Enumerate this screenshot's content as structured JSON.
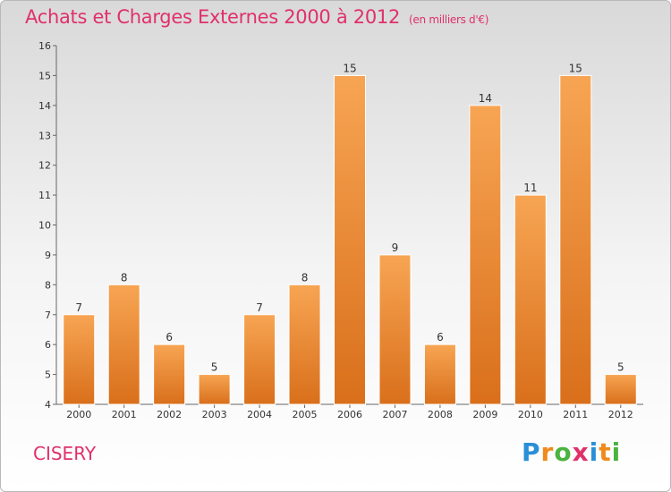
{
  "header": {
    "title": "Achats et Charges Externes 2000 à 2012",
    "subtitle": "(en milliers d'€)"
  },
  "footer": {
    "commune": "CISERY",
    "logo_letters": [
      {
        "char": "P",
        "color": "#2a8fd6"
      },
      {
        "char": "r",
        "color": "#f08a1c"
      },
      {
        "char": "o",
        "color": "#4bb33f"
      },
      {
        "char": "x",
        "color": "#e0306a"
      },
      {
        "char": "i",
        "color": "#2a8fd6"
      },
      {
        "char": "t",
        "color": "#f08a1c"
      },
      {
        "char": "i",
        "color": "#4bb33f"
      }
    ]
  },
  "chart_data": {
    "type": "bar",
    "categories": [
      "2000",
      "2001",
      "2002",
      "2003",
      "2004",
      "2005",
      "2006",
      "2007",
      "2008",
      "2009",
      "2010",
      "2011",
      "2012"
    ],
    "values": [
      7,
      8,
      6,
      5,
      7,
      8,
      15,
      9,
      6,
      14,
      11,
      15,
      5
    ],
    "ylim": [
      4,
      16
    ],
    "yticks": [
      4,
      5,
      6,
      7,
      8,
      9,
      10,
      11,
      12,
      13,
      14,
      15,
      16
    ],
    "grid": false,
    "bar_color_top": "#f7a553",
    "bar_color_bottom": "#d96f1b"
  }
}
